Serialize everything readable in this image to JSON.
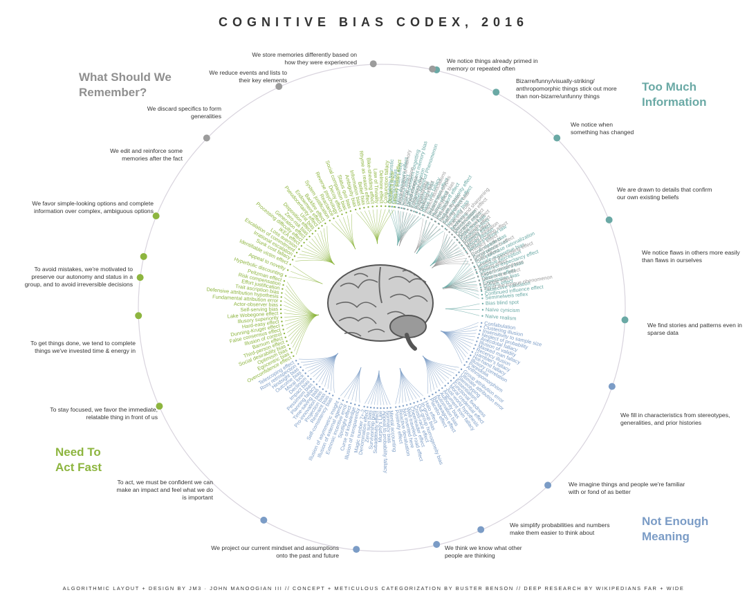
{
  "title": "COGNITIVE BIAS CODEX, 2016",
  "footer": "ALGORITHMIC LAYOUT + DESIGN BY JM3 · JOHN MANOOGIAN III // CONCEPT + METICULOUS CATEGORIZATION BY BUSTER BENSON // DEEP RESEARCH BY WIKIPEDIANS FAR + WIDE",
  "colors": {
    "remember": "#9c9c9c",
    "information": "#6aa9a5",
    "meaning": "#7b9cc6",
    "act": "#8db53f"
  },
  "quadrants": [
    {
      "id": "remember",
      "title": [
        "What Should We",
        "Remember?"
      ],
      "color": "#8f8f8f"
    },
    {
      "id": "information",
      "title": [
        "Too Much",
        "Information"
      ],
      "color": "#6aa9a5"
    },
    {
      "id": "meaning",
      "title": [
        "Not Enough",
        "Meaning"
      ],
      "color": "#7b9cc6"
    },
    {
      "id": "act",
      "title": [
        "Need To",
        "Act Fast"
      ],
      "color": "#8db53f"
    }
  ],
  "center_icon": "brain-icon",
  "groups": [
    {
      "q": "information",
      "label": "We notice things already primed in memory or repeated often",
      "biases": [
        "Availability heuristic",
        "Attentional bias",
        "Illusory truth effect",
        "Mere exposure effect",
        "Context effect",
        "Cue-dependent forgetting",
        "Mood-congruent memory bias",
        "Frequency illusion",
        "Baader-Meinhof Phenomenon",
        "Empathy gap",
        "Omission bias",
        "Base rate fallacy"
      ]
    },
    {
      "q": "information",
      "label": "Bizarre/funny/visually-striking/ anthropomorphic things stick out more than non-bizarre/unfunny things",
      "biases": [
        "Bizarreness effect",
        "Humor effect",
        "Von Restorff effect",
        "Picture superiority effect",
        "Self-relevance effect",
        "Negativity bias"
      ]
    },
    {
      "q": "information",
      "label": "We notice when something has changed",
      "biases": [
        "Anchoring",
        "Conservatism",
        "Contrast effect",
        "Distinction bias",
        "Focusing effect",
        "Framing effect",
        "Money illusion",
        "Weber-Fechner law"
      ]
    },
    {
      "q": "information",
      "label": "We are drawn to details that confirm our own existing beliefs",
      "biases": [
        "Confirmation bias",
        "Congruence bias",
        "Post-purchase rationalization",
        "Choice-supportive bias",
        "Selective perception",
        "Observer-expectancy effect",
        "Experimenter's bias",
        "Observer effect",
        "Expectation bias",
        "Ostrich effect",
        "Subjective validation",
        "Continued influence effect",
        "Semmelweis reflex"
      ]
    },
    {
      "q": "information",
      "label": "We notice flaws in others more easily than flaws in ourselves",
      "biases": [
        "Bias blind spot",
        "Naïve cynicism",
        "Naïve realism"
      ]
    },
    {
      "q": "meaning",
      "label": "We find stories and patterns even in sparse data",
      "biases": [
        "Confabulation",
        "Clustering illusion",
        "Insensitivity to sample size",
        "Neglect of probability",
        "Anecdotal fallacy",
        "Illusion of validity",
        "Masked man fallacy",
        "Recency illusion",
        "Gambler's fallacy",
        "Hot-hand fallacy",
        "Illusory correlation",
        "Pareidolia",
        "Anthropomorphism"
      ]
    },
    {
      "q": "meaning",
      "label": "We fill in characteristics from stereotypes, generalities, and prior histories",
      "biases": [
        "Group attribution error",
        "Ultimate attribution error",
        "Stereotyping",
        "Essentialism",
        "Functional fixedness",
        "Moral credential effect",
        "Just-world hypothesis",
        "Argument from fallacy",
        "Authority bias",
        "Automation bias",
        "Bandwagon effect",
        "Placebo effect"
      ]
    },
    {
      "q": "meaning",
      "label": "We imagine things and people we're familiar with or fond of as better",
      "biases": [
        "Halo effect",
        "In-group bias",
        "Out-group homogeneity bias",
        "Cross-race effect",
        "Cheerleader effect",
        "Well-traveled road effect",
        "Not invented here",
        "Reactive devaluation",
        "Positivity effect"
      ]
    },
    {
      "q": "meaning",
      "label": "We simplify probabilities and numbers make them easier to think about",
      "biases": [
        "Mental accounting",
        "Normalcy bias",
        "Appeal to probability fallacy",
        "Murphy's Law",
        "Subadditivity effect",
        "Survivorship bias",
        "Zero sum bias",
        "Denomination effect",
        "Magic number 7+-2"
      ]
    },
    {
      "q": "meaning",
      "label": "We think we know what other people are thinking",
      "biases": [
        "Illusion of transparency",
        "Curse of knowledge",
        "Spotlight effect",
        "Extrinsic incentive error",
        "Illusion of external agency",
        "Illusion of asymmetric insight"
      ]
    },
    {
      "q": "meaning",
      "label": "We project our current mindset and assumptions onto the past and future",
      "biases": [
        "Self-consistency bias",
        "Restraint bias",
        "Projection bias",
        "Pro-innovation bias",
        "Time-saving bias",
        "Planning fallacy",
        "Pessimism bias",
        "Impact bias",
        "Declinism",
        "Moral luck",
        "Outcome bias",
        "Hindsight bias",
        "Rosy retrospection",
        "Telescoping effect"
      ]
    },
    {
      "q": "act",
      "label": "To act, we must be confident we can make an impact and feel what we do is important",
      "biases": [
        "Overconfidence effect",
        "Egocentric bias",
        "Optimism bias",
        "Social desirability bias",
        "Third-person effect",
        "Barnum effect",
        "Illusion of control",
        "False consensus effect",
        "Dunning-Kruger effect",
        "Hard-easy effect",
        "Illusory superiority",
        "Lake Wobegone effect",
        "Self-serving bias",
        "Actor-observer bias",
        "Fundamental attribution error",
        "Defensive attribution hypothesis",
        "Trait ascription bias",
        "Effort justification",
        "Risk compensation",
        "Peltzman effect"
      ]
    },
    {
      "q": "act",
      "label": "To stay focused, we favor the immediate, relatable thing in front of us",
      "biases": [
        "Hyperbolic discounting",
        "Appeal to novelty",
        "Identifiable victim effect"
      ]
    },
    {
      "q": "act",
      "label": "To get things done, we tend to complete things we've invested time & energy in",
      "biases": [
        "Sunk cost fallacy",
        "Irrational escalation",
        "Escalation of commitment",
        "Loss aversion",
        "IKEA effect",
        "Processing difficulty effect",
        "Generation effect",
        "Zero-risk bias",
        "Disposition effect",
        "Unit bias",
        "Pseudocertainty effect",
        "Endowment effect",
        "Backfire effect"
      ]
    },
    {
      "q": "act",
      "label": "To avoid mistakes, we're motivated to preserve our autonomy and status in a group, and to avoid irreversible decisions",
      "biases": [
        "System justification",
        "Reactance",
        "Reverse psychology",
        "Decoy effect",
        "Social comparison bias",
        "Status quo bias"
      ]
    },
    {
      "q": "act",
      "label": "We favor simple-looking options and complete information over complex, ambiguous options",
      "biases": [
        "Ambiguity bias",
        "Information bias",
        "Belief bias",
        "Rhyme as reason effect",
        "Bike-shedding effect",
        "Law of Triviality",
        "Delmore effect",
        "Conjunction fallacy",
        "Occam's razor",
        "Less-is-better effect"
      ]
    },
    {
      "q": "remember",
      "label": "We edit and reinforce some memories after the fact",
      "biases": [
        "Misattribution of memory",
        "Source confusion",
        "Cryptomnesia",
        "False memory",
        "Suggestibility",
        "Spacing effect"
      ]
    },
    {
      "q": "remember",
      "label": "We discard specifics to form generalities",
      "biases": [
        "Implicit associations",
        "Implicit stereotypes",
        "Stereotypical bias",
        "Prejudice",
        "Negativity bias",
        "Fading affect bias"
      ]
    },
    {
      "q": "remember",
      "label": "We reduce events and lists to their key elements",
      "biases": [
        "Peak-end rule",
        "Leveling and sharpening",
        "Misinformation effect",
        "Duration neglect",
        "Serial recall effect",
        "List-length effect",
        "Modality effect",
        "Memory inhibition",
        "Part-list cueing effect",
        "Primacy effect",
        "Recency effect",
        "Serial position effect",
        "Suffix effect"
      ]
    },
    {
      "q": "remember",
      "label": "We store memories differently based on how they were experienced",
      "biases": [
        "Levels of processing effect",
        "Testing effect",
        "Absent-mindedness",
        "Next-in-line effect",
        "Google effect",
        "Tip of the tongue phenomenon"
      ]
    }
  ]
}
